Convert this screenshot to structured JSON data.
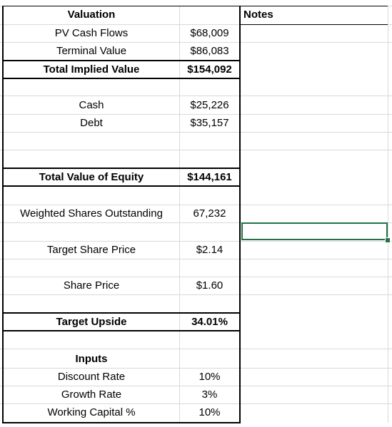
{
  "valuation": {
    "header": "Valuation",
    "notes_header": "Notes",
    "pv_cash_flows_label": "PV Cash Flows",
    "pv_cash_flows_value": "$68,009",
    "terminal_value_label": "Terminal Value",
    "terminal_value_value": "$86,083",
    "total_implied_label": "Total Implied Value",
    "total_implied_value": "$154,092",
    "cash_label": "Cash",
    "cash_value": "$25,226",
    "debt_label": "Debt",
    "debt_value": "$35,157",
    "equity_label": "Total Value of Equity",
    "equity_value": "$144,161",
    "shares_label": "Weighted Shares Outstanding",
    "shares_value": "67,232",
    "target_price_label": "Target Share Price",
    "target_price_value": "$2.14",
    "share_price_label": "Share Price",
    "share_price_value": "$1.60",
    "upside_label": "Target Upside",
    "upside_value": "34.01%"
  },
  "inputs": {
    "header": "Inputs",
    "discount_label": "Discount Rate",
    "discount_value": "10%",
    "growth_label": "Growth Rate",
    "growth_value": "3%",
    "wc_label": "Working Capital %",
    "wc_value": "10%"
  },
  "colors": {
    "selection": "#217346",
    "gridline": "#d9d9d9"
  }
}
